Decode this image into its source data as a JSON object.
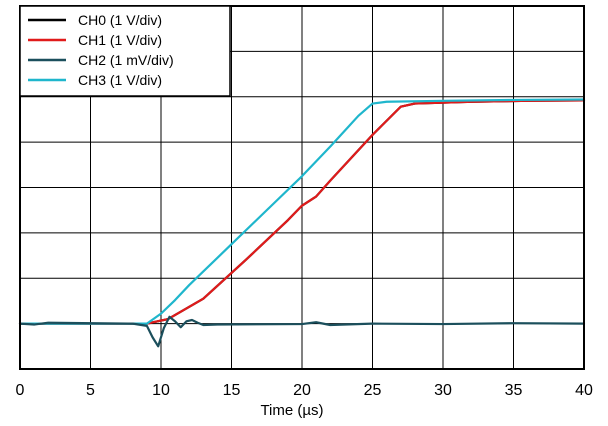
{
  "chart_data": {
    "type": "line",
    "title": "",
    "xlabel": "Time (µs)",
    "ylabel": "",
    "xlim": [
      0,
      40
    ],
    "x_ticks": [
      0,
      5,
      10,
      15,
      20,
      25,
      30,
      35,
      40
    ],
    "x_tick_labels": [
      "0",
      "5",
      "10",
      "15",
      "20",
      "25",
      "30",
      "35",
      "40"
    ],
    "y_divisions": 8,
    "ylim": [
      -6,
      2
    ],
    "grid": true,
    "legend_position": "top-left",
    "series": [
      {
        "name": "CH0 (1 V/div)",
        "color": "#000000",
        "x": [
          0,
          9,
          10.5,
          13,
          16,
          19,
          20,
          21,
          22,
          25,
          27,
          28,
          32,
          36,
          40
        ],
        "y": [
          -5.0,
          -5.0,
          -4.9,
          -4.45,
          -3.6,
          -2.72,
          -2.4,
          -2.2,
          -1.85,
          -0.84,
          -0.22,
          -0.15,
          -0.11,
          -0.09,
          -0.08
        ]
      },
      {
        "name": "CH1 (1 V/div)",
        "color": "#e01b1b",
        "x": [
          0,
          9,
          10.5,
          13,
          16,
          19,
          20,
          21,
          22,
          25,
          27,
          28,
          32,
          36,
          40
        ],
        "y": [
          -5.0,
          -5.0,
          -4.9,
          -4.45,
          -3.6,
          -2.72,
          -2.4,
          -2.2,
          -1.85,
          -0.84,
          -0.22,
          -0.15,
          -0.11,
          -0.09,
          -0.08
        ]
      },
      {
        "name": "CH2 (1 mV/div)",
        "color": "#1b4f5c",
        "x": [
          0,
          1,
          2,
          8,
          9,
          9.4,
          9.8,
          10.2,
          10.6,
          11,
          11.4,
          11.8,
          12.2,
          12.6,
          13,
          14,
          20,
          21,
          22,
          25,
          30,
          35,
          40
        ],
        "y": [
          -5.0,
          -5.02,
          -4.98,
          -5.0,
          -5.05,
          -5.3,
          -5.5,
          -5.1,
          -4.85,
          -4.95,
          -5.08,
          -4.95,
          -4.92,
          -4.98,
          -5.03,
          -5.02,
          -5.01,
          -4.97,
          -5.03,
          -5.0,
          -5.01,
          -4.99,
          -5.0
        ]
      },
      {
        "name": "CH3 (1 V/div)",
        "color": "#1fb6cc",
        "x": [
          0,
          5,
          9,
          10,
          11,
          12,
          15,
          18,
          20,
          22,
          24,
          25,
          26,
          30,
          35,
          40
        ],
        "y": [
          -5.0,
          -5.0,
          -5.0,
          -4.78,
          -4.48,
          -4.15,
          -3.25,
          -2.35,
          -1.75,
          -1.1,
          -0.42,
          -0.15,
          -0.11,
          -0.09,
          -0.07,
          -0.06
        ]
      }
    ]
  }
}
